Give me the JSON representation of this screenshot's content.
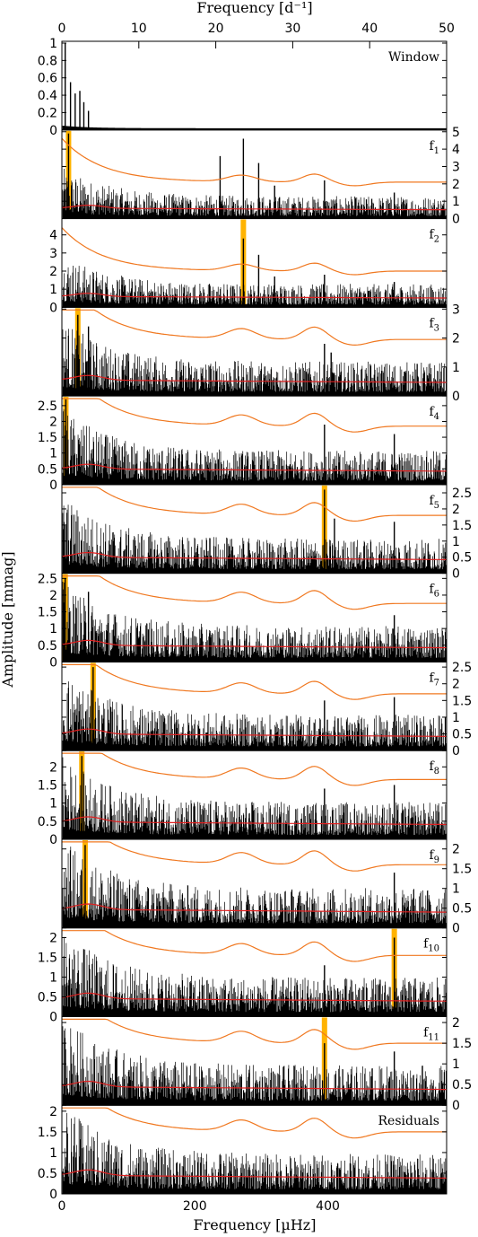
{
  "top_axis": {
    "label": "Frequency [d⁻¹]",
    "ticks": [
      "0",
      "10",
      "20",
      "30",
      "40",
      "50"
    ],
    "range": [
      0,
      50
    ]
  },
  "bottom_axis": {
    "label": "Frequency [µHz]",
    "ticks": [
      "0",
      "200",
      "400"
    ],
    "range": [
      0,
      578.7
    ]
  },
  "y_axis_label": "Amplitude [mmag]",
  "colors": {
    "spectrum": "#000000",
    "threshold": "#f07820",
    "noise": "#e02020",
    "highlight": "#ffb300"
  },
  "chart_data": {
    "type": "line",
    "title": "",
    "xlabel": "Frequency [µHz]",
    "ylabel": "Amplitude [mmag]",
    "xlim": [
      0,
      578.7
    ],
    "panels": [
      {
        "label": "Window",
        "sub": "",
        "ylim": [
          0,
          1
        ],
        "ticks": [
          0,
          0.2,
          0.4,
          0.6,
          0.8,
          1
        ],
        "tick_labels": [
          "0",
          "0.2",
          "0.4",
          "0.6",
          "0.8",
          "1"
        ],
        "tick_side": "left",
        "highlight": null,
        "noise_level": 0,
        "threshold_level": 0,
        "peaks": [
          [
            5,
            1.0
          ],
          [
            13,
            0.55
          ],
          [
            20,
            0.42
          ],
          [
            27,
            0.45
          ],
          [
            33,
            0.32
          ],
          [
            40,
            0.22
          ]
        ]
      },
      {
        "label": "f",
        "sub": "1",
        "ylim": [
          0,
          5
        ],
        "ticks": [
          0,
          1,
          2,
          3,
          4,
          5
        ],
        "tick_labels": [
          "0",
          "1",
          "2",
          "3",
          "4",
          "5"
        ],
        "tick_side": "right",
        "highlight": 10,
        "noise_level": 0.6,
        "threshold_level": 2.1,
        "peaks": [
          [
            10,
            4.9
          ],
          [
            238,
            3.6
          ],
          [
            273,
            4.6
          ],
          [
            296,
            3.2
          ],
          [
            320,
            1.9
          ],
          [
            395,
            2.2
          ],
          [
            500,
            1.5
          ]
        ]
      },
      {
        "label": "f",
        "sub": "2",
        "ylim": [
          0,
          4.8
        ],
        "ticks": [
          0,
          1,
          2,
          3,
          4
        ],
        "tick_labels": [
          "0",
          "1",
          "2",
          "3",
          "4"
        ],
        "tick_side": "left",
        "highlight": 273,
        "noise_level": 0.6,
        "threshold_level": 2.0,
        "peaks": [
          [
            273,
            3.8
          ],
          [
            296,
            2.9
          ],
          [
            320,
            1.7
          ],
          [
            395,
            1.8
          ],
          [
            500,
            1.4
          ]
        ]
      },
      {
        "label": "f",
        "sub": "3",
        "ylim": [
          0,
          3
        ],
        "ticks": [
          0,
          1,
          2,
          3
        ],
        "tick_labels": [
          "0",
          "1",
          "2",
          "3"
        ],
        "tick_side": "right",
        "highlight": 24,
        "noise_level": 0.55,
        "threshold_level": 1.95,
        "peaks": [
          [
            24,
            2.8
          ],
          [
            40,
            2.4
          ],
          [
            395,
            1.8
          ],
          [
            405,
            1.5
          ]
        ]
      },
      {
        "label": "f",
        "sub": "4",
        "ylim": [
          0,
          2.75
        ],
        "ticks": [
          0,
          0.5,
          1,
          1.5,
          2,
          2.5
        ],
        "tick_labels": [
          "0",
          "0.5",
          "1",
          "1.5",
          "2",
          "2.5"
        ],
        "tick_side": "left",
        "highlight": 6,
        "noise_level": 0.5,
        "threshold_level": 1.85,
        "peaks": [
          [
            6,
            2.7
          ],
          [
            395,
            1.9
          ],
          [
            500,
            1.6
          ]
        ]
      },
      {
        "label": "f",
        "sub": "5",
        "ylim": [
          0,
          2.7
        ],
        "ticks": [
          0,
          0.5,
          1,
          1.5,
          2,
          2.5
        ],
        "tick_labels": [
          "0",
          "0.5",
          "1",
          "1.5",
          "2",
          "2.5"
        ],
        "tick_side": "right",
        "highlight": 395,
        "noise_level": 0.5,
        "threshold_level": 1.8,
        "peaks": [
          [
            395,
            2.6
          ],
          [
            410,
            1.7
          ],
          [
            500,
            1.6
          ]
        ]
      },
      {
        "label": "f",
        "sub": "6",
        "ylim": [
          0,
          2.6
        ],
        "ticks": [
          0,
          0.5,
          1,
          1.5,
          2,
          2.5
        ],
        "tick_labels": [
          "0",
          "0.5",
          "1",
          "1.5",
          "2",
          "2.5"
        ],
        "tick_side": "left",
        "highlight": 5,
        "noise_level": 0.5,
        "threshold_level": 1.75,
        "peaks": [
          [
            5,
            2.5
          ],
          [
            40,
            2.1
          ],
          [
            500,
            1.4
          ]
        ]
      },
      {
        "label": "f",
        "sub": "7",
        "ylim": [
          0,
          2.6
        ],
        "ticks": [
          0,
          0.5,
          1,
          1.5,
          2,
          2.5
        ],
        "tick_labels": [
          "0",
          "0.5",
          "1",
          "1.5",
          "2",
          "2.5"
        ],
        "tick_side": "right",
        "highlight": 47,
        "noise_level": 0.5,
        "threshold_level": 1.7,
        "peaks": [
          [
            47,
            2.5
          ],
          [
            395,
            1.5
          ],
          [
            500,
            1.6
          ]
        ]
      },
      {
        "label": "f",
        "sub": "8",
        "ylim": [
          0,
          2.4
        ],
        "ticks": [
          0,
          0.5,
          1,
          1.5,
          2
        ],
        "tick_labels": [
          "0",
          "0.5",
          "1",
          "1.5",
          "2"
        ],
        "tick_side": "left",
        "highlight": 30,
        "noise_level": 0.48,
        "threshold_level": 1.65,
        "peaks": [
          [
            30,
            2.3
          ],
          [
            395,
            1.4
          ],
          [
            500,
            1.5
          ]
        ]
      },
      {
        "label": "f",
        "sub": "9",
        "ylim": [
          0,
          2.2
        ],
        "ticks": [
          0,
          0.5,
          1,
          1.5,
          2
        ],
        "tick_labels": [
          "0",
          "0.5",
          "1",
          "1.5",
          "2"
        ],
        "tick_side": "right",
        "highlight": 35,
        "noise_level": 0.47,
        "threshold_level": 1.6,
        "peaks": [
          [
            35,
            2.1
          ],
          [
            500,
            1.4
          ]
        ]
      },
      {
        "label": "f",
        "sub": "10",
        "ylim": [
          0,
          2.2
        ],
        "ticks": [
          0,
          0.5,
          1,
          1.5,
          2
        ],
        "tick_labels": [
          "0",
          "0.5",
          "1",
          "1.5",
          "2"
        ],
        "tick_side": "left",
        "highlight": 500,
        "noise_level": 0.46,
        "threshold_level": 1.55,
        "peaks": [
          [
            500,
            2.0
          ],
          [
            395,
            1.3
          ]
        ]
      },
      {
        "label": "f",
        "sub": "11",
        "ylim": [
          0,
          2.1
        ],
        "ticks": [
          0,
          0.5,
          1,
          1.5,
          2
        ],
        "tick_labels": [
          "0",
          "0.5",
          "1",
          "1.5",
          "2"
        ],
        "tick_side": "right",
        "highlight": 395,
        "noise_level": 0.45,
        "threshold_level": 1.5,
        "peaks": [
          [
            395,
            1.5
          ],
          [
            500,
            1.3
          ]
        ]
      },
      {
        "label": "Residuals",
        "sub": "",
        "ylim": [
          0,
          2.1
        ],
        "ticks": [
          0,
          0.5,
          1,
          1.5,
          2
        ],
        "tick_labels": [
          "0",
          "0.5",
          "1",
          "1.5",
          "2"
        ],
        "tick_side": "left",
        "highlight": null,
        "noise_level": 0.45,
        "threshold_level": 1.5,
        "peaks": []
      }
    ]
  }
}
